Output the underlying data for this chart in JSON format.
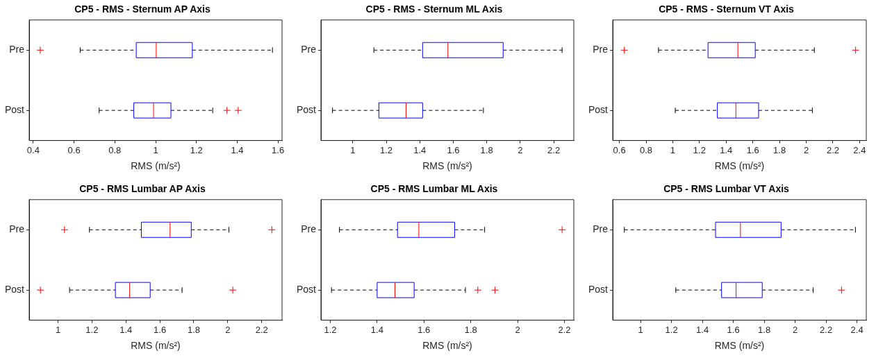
{
  "chart_data": [
    {
      "type": "box",
      "title": "CP5 - RMS - Sternum AP Axis",
      "xlabel": "RMS (m/s²)",
      "orientation": "horizontal",
      "categories": [
        "Pre",
        "Post"
      ],
      "xlim": [
        0.38,
        1.62
      ],
      "xticks": [
        0.4,
        0.6,
        0.8,
        1,
        1.2,
        1.4,
        1.6
      ],
      "grid": false,
      "legend": false,
      "series": [
        {
          "color": "#0000ff",
          "boxes": [
            {
              "low": 0.63,
              "q1": 0.905,
              "median": 1.003,
              "q3": 1.18,
              "high": 1.573,
              "outliers": [
                0.434
              ]
            },
            {
              "low": 0.723,
              "q1": 0.893,
              "median": 0.99,
              "q3": 1.075,
              "high": 1.28,
              "outliers": [
                1.35,
                1.405
              ]
            }
          ]
        }
      ]
    },
    {
      "type": "box",
      "title": "CP5 - RMS - Sternum ML Axis",
      "xlabel": "RMS (m/s²)",
      "orientation": "horizontal",
      "categories": [
        "Pre",
        "Post"
      ],
      "xlim": [
        0.81,
        2.32
      ],
      "xticks": [
        1,
        1.2,
        1.4,
        1.6,
        1.8,
        2,
        2.2
      ],
      "grid": false,
      "legend": false,
      "series": [
        {
          "color": "#0000ff",
          "boxes": [
            {
              "low": 1.126,
              "q1": 1.417,
              "median": 1.568,
              "q3": 1.898,
              "high": 2.25
            },
            {
              "low": 0.879,
              "q1": 1.156,
              "median": 1.318,
              "q3": 1.417,
              "high": 1.78
            }
          ]
        }
      ]
    },
    {
      "type": "box",
      "title": "CP5 - RMS - Sternum VT Axis",
      "xlabel": "RMS (m/s²)",
      "orientation": "horizontal",
      "categories": [
        "Pre",
        "Post"
      ],
      "xlim": [
        0.55,
        2.45
      ],
      "xticks": [
        0.6,
        0.8,
        1,
        1.2,
        1.4,
        1.6,
        1.8,
        2,
        2.2,
        2.4
      ],
      "grid": false,
      "legend": false,
      "series": [
        {
          "color": "#0000ff",
          "boxes": [
            {
              "low": 0.893,
              "q1": 1.264,
              "median": 1.488,
              "q3": 1.618,
              "high": 2.061,
              "outliers": [
                0.637,
                2.37
              ]
            },
            {
              "low": 1.019,
              "q1": 1.334,
              "median": 1.473,
              "q3": 1.643,
              "high": 2.046
            }
          ]
        }
      ]
    },
    {
      "type": "box",
      "title": "CP5 - RMS Lumbar AP Axis",
      "xlabel": "RMS (m/s²)",
      "orientation": "horizontal",
      "categories": [
        "Pre",
        "Post"
      ],
      "xlim": [
        0.83,
        2.32
      ],
      "xticks": [
        1,
        1.2,
        1.4,
        1.6,
        1.8,
        2,
        2.2
      ],
      "grid": false,
      "legend": false,
      "series": [
        {
          "color": "#0000ff",
          "boxes": [
            {
              "low": 1.185,
              "q1": 1.491,
              "median": 1.66,
              "q3": 1.785,
              "high": 2.007,
              "outliers": [
                1.038,
                2.26
              ]
            },
            {
              "low": 1.068,
              "q1": 1.338,
              "median": 1.422,
              "q3": 1.543,
              "high": 1.731,
              "outliers": [
                0.896,
                2.03
              ]
            }
          ]
        }
      ]
    },
    {
      "type": "box",
      "title": "CP5 - RMS Lumbar ML Axis",
      "xlabel": "RMS (m/s²)",
      "orientation": "horizontal",
      "categories": [
        "Pre",
        "Post"
      ],
      "xlim": [
        1.16,
        2.24
      ],
      "xticks": [
        1.2,
        1.4,
        1.6,
        1.8,
        2,
        2.2
      ],
      "grid": false,
      "legend": false,
      "series": [
        {
          "color": "#0000ff",
          "boxes": [
            {
              "low": 1.239,
              "q1": 1.487,
              "median": 1.578,
              "q3": 1.731,
              "high": 1.859,
              "outliers": [
                2.19
              ]
            },
            {
              "low": 1.205,
              "q1": 1.4,
              "median": 1.476,
              "q3": 1.558,
              "high": 1.777,
              "outliers": [
                1.83,
                1.903
              ]
            }
          ]
        }
      ]
    },
    {
      "type": "box",
      "title": "CP5 - RMS Lumbar VT Axis",
      "xlabel": "RMS (m/s²)",
      "orientation": "horizontal",
      "categories": [
        "Pre",
        "Post"
      ],
      "xlim": [
        0.82,
        2.46
      ],
      "xticks": [
        1,
        1.2,
        1.4,
        1.6,
        1.8,
        2,
        2.2,
        2.4
      ],
      "grid": false,
      "legend": false,
      "series": [
        {
          "color": "#0000ff",
          "boxes": [
            {
              "low": 0.895,
              "q1": 1.485,
              "median": 1.646,
              "q3": 1.909,
              "high": 2.39
            },
            {
              "low": 1.228,
              "q1": 1.524,
              "median": 1.618,
              "q3": 1.787,
              "high": 2.117,
              "outliers": [
                2.3
              ]
            }
          ]
        }
      ]
    }
  ]
}
